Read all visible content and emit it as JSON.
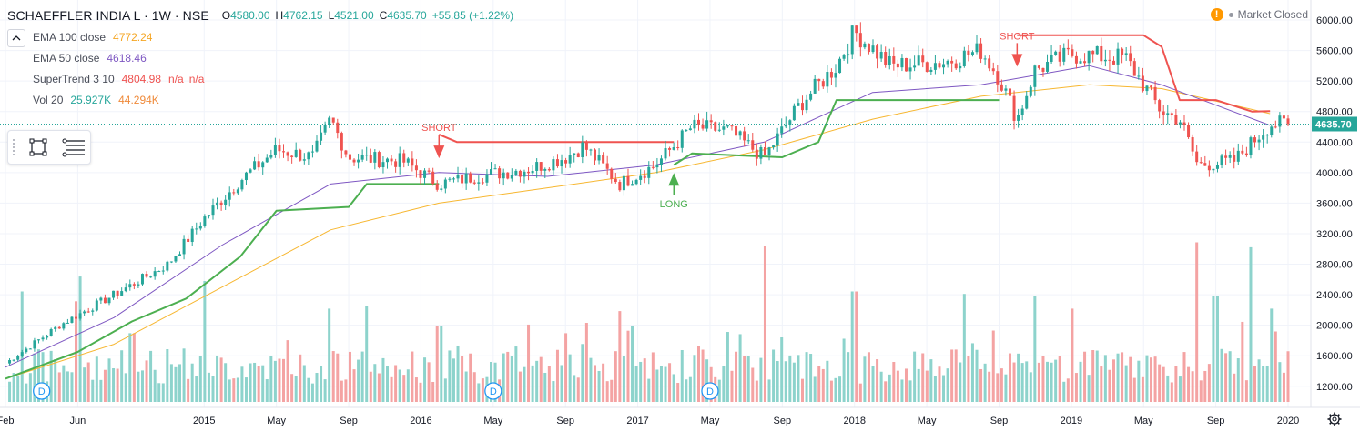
{
  "header": {
    "symbol": "SCHAEFFLER INDIA L · 1W · NSE",
    "open_label": "O",
    "open": "4580.00",
    "high_label": "H",
    "high": "4762.15",
    "low_label": "L",
    "low": "4521.00",
    "close_label": "C",
    "close": "4635.70",
    "change": "+55.85 (+1.22%)"
  },
  "indicators": [
    {
      "name": "EMA 100 close",
      "value": "4772.24",
      "value2": "",
      "value3": "",
      "color": "#f7b731"
    },
    {
      "name": "EMA 50 close",
      "value": "4618.46",
      "value2": "",
      "value3": "",
      "color": "#7e57c2"
    },
    {
      "name": "SuperTrend 3 10",
      "value": "4804.98",
      "value2": "n/a",
      "value3": "n/a",
      "color": "#ef5350"
    },
    {
      "name": "Vol 20",
      "value": "25.927K",
      "value2": "44.294K",
      "value3": "",
      "color": "#26a69a"
    }
  ],
  "market_status": {
    "icon": "warning-icon",
    "text": "Market Closed"
  },
  "toolbar": {
    "icons": [
      "rectangle-tool-icon",
      "fib-lines-tool-icon"
    ]
  },
  "colors": {
    "up": "#26a69a",
    "down": "#ef5350",
    "vol_up": "#8dd3cc",
    "vol_down": "#f4a3a3",
    "ema100": "#f7b731",
    "ema50": "#7e57c2",
    "st_up": "#4caf50",
    "st_down": "#ef5350"
  },
  "chart_data": {
    "type": "candlestick",
    "title": "SCHAEFFLER INDIA L · 1W · NSE",
    "x_ticks": [
      "Feb",
      "Jun",
      "2015",
      "May",
      "Sep",
      "2016",
      "May",
      "Sep",
      "2017",
      "May",
      "Sep",
      "2018",
      "May",
      "Sep",
      "2019",
      "May",
      "Sep",
      "2020"
    ],
    "y_ticks": [
      "1200.00",
      "1600.00",
      "2000.00",
      "2400.00",
      "2800.00",
      "3200.00",
      "3600.00",
      "4000.00",
      "4400.00",
      "4800.00",
      "5200.00",
      "5600.00",
      "6000.00"
    ],
    "ylim": [
      1000,
      6150
    ],
    "last_price": "4635.70",
    "close_path": [
      [
        "2014-02",
        1500
      ],
      [
        "2014-05",
        2000
      ],
      [
        "2014-08",
        2400
      ],
      [
        "2014-11",
        2800
      ],
      [
        "2015-01",
        3400
      ],
      [
        "2015-03",
        3900
      ],
      [
        "2015-05",
        4300
      ],
      [
        "2015-07",
        4200
      ],
      [
        "2015-08",
        4700
      ],
      [
        "2015-09",
        4200
      ],
      [
        "2015-12",
        4150
      ],
      [
        "2016-01",
        4000
      ],
      [
        "2016-02",
        3850
      ],
      [
        "2016-04",
        3950
      ],
      [
        "2016-07",
        4050
      ],
      [
        "2016-09",
        4200
      ],
      [
        "2016-10",
        4350
      ],
      [
        "2016-12",
        3850
      ],
      [
        "2017-02",
        4100
      ],
      [
        "2017-04",
        4600
      ],
      [
        "2017-06",
        4550
      ],
      [
        "2017-08",
        4200
      ],
      [
        "2017-10",
        4900
      ],
      [
        "2017-12",
        5400
      ],
      [
        "2018-01",
        5850
      ],
      [
        "2018-03",
        5400
      ],
      [
        "2018-06",
        5450
      ],
      [
        "2018-08",
        5600
      ],
      [
        "2018-09",
        5250
      ],
      [
        "2018-10",
        4700
      ],
      [
        "2018-11",
        5350
      ],
      [
        "2019-01",
        5550
      ],
      [
        "2019-04",
        5500
      ],
      [
        "2019-06",
        4800
      ],
      [
        "2019-07",
        4700
      ],
      [
        "2019-08",
        4100
      ],
      [
        "2019-10",
        4150
      ],
      [
        "2019-12",
        4635.7
      ]
    ],
    "ema100": [
      [
        "2014-02",
        1300
      ],
      [
        "2014-08",
        1750
      ],
      [
        "2015-02",
        2500
      ],
      [
        "2015-08",
        3250
      ],
      [
        "2016-02",
        3600
      ],
      [
        "2016-08",
        3800
      ],
      [
        "2017-02",
        4000
      ],
      [
        "2017-08",
        4300
      ],
      [
        "2018-02",
        4700
      ],
      [
        "2018-08",
        5000
      ],
      [
        "2019-02",
        5150
      ],
      [
        "2019-06",
        5100
      ],
      [
        "2019-12",
        4772.24
      ]
    ],
    "ema50": [
      [
        "2014-02",
        1450
      ],
      [
        "2014-08",
        2100
      ],
      [
        "2015-02",
        3050
      ],
      [
        "2015-08",
        3850
      ],
      [
        "2016-02",
        4000
      ],
      [
        "2016-08",
        3950
      ],
      [
        "2017-02",
        4100
      ],
      [
        "2017-08",
        4400
      ],
      [
        "2018-02",
        5050
      ],
      [
        "2018-08",
        5150
      ],
      [
        "2019-02",
        5400
      ],
      [
        "2019-06",
        5150
      ],
      [
        "2019-12",
        4618.46
      ]
    ],
    "supertrend": [
      {
        "trend": "up",
        "points": [
          [
            "2014-02",
            1300
          ],
          [
            "2014-06",
            1650
          ],
          [
            "2014-09",
            2050
          ],
          [
            "2014-12",
            2350
          ],
          [
            "2015-03",
            2900
          ],
          [
            "2015-05",
            3500
          ],
          [
            "2015-09",
            3550
          ],
          [
            "2015-10",
            3850
          ],
          [
            "2016-02",
            3850
          ]
        ]
      },
      {
        "trend": "down",
        "points": [
          [
            "2016-02",
            4500
          ],
          [
            "2016-03",
            4400
          ],
          [
            "2017-03",
            4400
          ]
        ]
      },
      {
        "trend": "up",
        "points": [
          [
            "2017-03",
            4100
          ],
          [
            "2017-04",
            4250
          ],
          [
            "2017-09",
            4200
          ],
          [
            "2017-11",
            4400
          ],
          [
            "2017-12",
            4950
          ],
          [
            "2018-09",
            4950
          ]
        ]
      },
      {
        "trend": "down",
        "points": [
          [
            "2018-10",
            5800
          ],
          [
            "2018-11",
            5800
          ],
          [
            "2019-05",
            5800
          ],
          [
            "2019-06",
            5650
          ],
          [
            "2019-07",
            4950
          ],
          [
            "2019-09",
            4950
          ],
          [
            "2019-11",
            4800
          ],
          [
            "2019-12",
            4804.98
          ]
        ]
      }
    ],
    "signals": [
      {
        "label": "SHORT",
        "date": "2016-02",
        "price": 4450,
        "direction": "down"
      },
      {
        "label": "LONG",
        "date": "2017-03",
        "price": 3900,
        "direction": "up"
      },
      {
        "label": "SHORT",
        "date": "2018-10",
        "price": 5650,
        "direction": "down"
      }
    ],
    "volume_spikes": [
      [
        "2014-02",
        2250
      ],
      [
        "2014-03",
        1900
      ],
      [
        "2014-06",
        1820
      ],
      [
        "2014-09",
        1560
      ],
      [
        "2015-01",
        1700
      ],
      [
        "2015-08",
        1760
      ],
      [
        "2015-10",
        1780
      ],
      [
        "2016-02",
        1620
      ],
      [
        "2016-09",
        1560
      ],
      [
        "2016-12",
        1740
      ],
      [
        "2017-08",
        2270
      ],
      [
        "2018-01",
        1900
      ],
      [
        "2018-07",
        1880
      ],
      [
        "2018-11",
        1700
      ],
      [
        "2019-01",
        1760
      ],
      [
        "2019-08",
        2300
      ],
      [
        "2019-09",
        1860
      ],
      [
        "2019-11",
        2260
      ],
      [
        "2019-12",
        1760
      ]
    ],
    "events": [
      {
        "label": "D",
        "date": "2014-04"
      },
      {
        "label": "D",
        "date": "2016-05"
      },
      {
        "label": "D",
        "date": "2017-05"
      }
    ]
  }
}
